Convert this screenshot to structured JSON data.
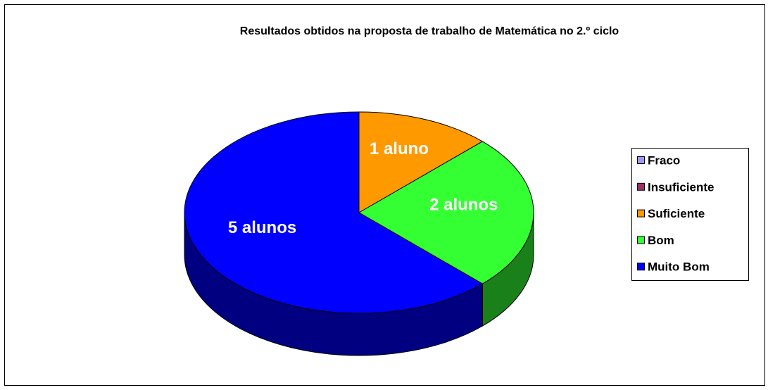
{
  "chart_data": {
    "type": "pie3d",
    "title": "Resultados obtidos na proposta de trabalho de Matemática no 2.º ciclo",
    "categories": [
      "Fraco",
      "Insuficiente",
      "Suficiente",
      "Bom",
      "Muito Bom"
    ],
    "values": [
      0,
      0,
      1,
      2,
      5
    ],
    "value_labels": [
      null,
      null,
      "1 aluno",
      "2 alunos",
      "5 alunos"
    ],
    "colors": [
      "#9999ff",
      "#993366",
      "#ff9900",
      "#33ff33",
      "#0000ff"
    ],
    "legend": "right"
  }
}
